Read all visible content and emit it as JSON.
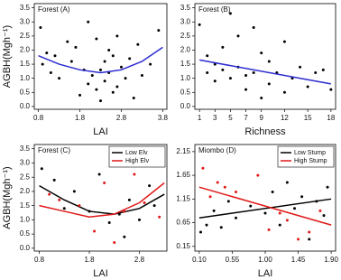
{
  "chart_data": [
    {
      "type": "scatter",
      "title": "Forest (A)",
      "xlabel": "LAI",
      "ylabel": "AGBH(Mgh⁻¹)",
      "xlim": [
        0.7,
        3.9
      ],
      "ylim": [
        -0.1,
        3.65
      ],
      "xticks": [
        0.8,
        1.8,
        2.8,
        3.8
      ],
      "yticks": [
        {
          "value": 0,
          "label": "0.0"
        },
        0.5,
        {
          "value": 1,
          "label": "1.0"
        },
        1.5,
        {
          "value": 2,
          "label": "2.0"
        },
        2.5,
        {
          "value": 3,
          "label": "3.0"
        },
        3.5
      ],
      "series": [
        {
          "color": "#000000",
          "fit_color": "#2b2bd0",
          "x": [
            0.85,
            0.9,
            1.0,
            1.1,
            1.2,
            1.3,
            1.5,
            1.6,
            1.7,
            1.8,
            1.9,
            2.0,
            2.0,
            2.1,
            2.2,
            2.2,
            2.3,
            2.3,
            2.4,
            2.4,
            2.5,
            2.5,
            2.6,
            2.6,
            2.7,
            2.7,
            2.8,
            2.9,
            3.0,
            3.1,
            3.2,
            3.3,
            3.5,
            3.7
          ],
          "values": [
            2.8,
            1.5,
            1.9,
            1.2,
            1.8,
            1.0,
            2.3,
            1.6,
            2.1,
            0.4,
            1.3,
            3.0,
            0.8,
            1.1,
            2.4,
            0.6,
            1.3,
            0.2,
            1.6,
            0.9,
            2.0,
            1.2,
            0.5,
            1.8,
            2.5,
            0.7,
            1.4,
            1.0,
            1.7,
            0.3,
            2.2,
            1.1,
            1.5,
            2.7
          ],
          "fit_x": [
            0.8,
            1.3,
            1.8,
            2.3,
            2.8,
            3.3,
            3.8
          ],
          "fit_values": [
            1.8,
            1.5,
            1.3,
            1.2,
            1.3,
            1.6,
            2.1
          ]
        }
      ]
    },
    {
      "type": "scatter",
      "title": "Forest (B)",
      "xlabel": "Richness",
      "xlim": [
        0.4,
        18.6
      ],
      "ylim": [
        -0.1,
        3.65
      ],
      "xticks": [
        1,
        3,
        5,
        7,
        9,
        12,
        15,
        18
      ],
      "yticks": [
        {
          "value": 0,
          "label": "0.0"
        },
        0.5,
        {
          "value": 1,
          "label": "1.0"
        },
        1.5,
        {
          "value": 2,
          "label": "2.0"
        },
        2.5,
        {
          "value": 3,
          "label": "3.0"
        },
        3.5
      ],
      "series": [
        {
          "color": "#000000",
          "fit_color": "#2b2bd0",
          "x": [
            1,
            2,
            2,
            3,
            3,
            4,
            4,
            5,
            5,
            6,
            6,
            7,
            7,
            8,
            8,
            9,
            9,
            10,
            10,
            11,
            12,
            12,
            13,
            14,
            15,
            16,
            17,
            18
          ],
          "values": [
            2.9,
            1.2,
            1.8,
            1.5,
            0.9,
            2.1,
            1.3,
            3.3,
            1.0,
            2.5,
            1.4,
            1.1,
            0.6,
            2.8,
            1.2,
            1.9,
            0.3,
            1.6,
            0.8,
            1.2,
            2.3,
            0.5,
            1.0,
            1.4,
            0.7,
            1.2,
            1.3,
            0.6
          ],
          "fit_x": [
            1,
            18
          ],
          "fit_values": [
            1.65,
            0.8
          ]
        }
      ]
    },
    {
      "type": "scatter",
      "title": "Forest (C)",
      "xlabel": "LAI",
      "ylabel": "AGBH(Mgh⁻¹)",
      "legend": "top-right",
      "xlim": [
        0.7,
        3.35
      ],
      "ylim": [
        -0.1,
        3.65
      ],
      "xticks": [
        0.8,
        1.8,
        2.8
      ],
      "yticks": [
        {
          "value": 0,
          "label": "0.0"
        },
        0.5,
        {
          "value": 1,
          "label": "1.0"
        },
        1.5,
        {
          "value": 2,
          "label": "2.0"
        },
        2.5,
        {
          "value": 3,
          "label": "3.0"
        },
        3.5
      ],
      "series": [
        {
          "name": "Low Elv",
          "color": "#000000",
          "fit_color": "#000000",
          "x": [
            0.85,
            1.1,
            1.3,
            1.5,
            1.8,
            2.0,
            2.2,
            2.4,
            2.5,
            2.6,
            2.8,
            3.0,
            3.1
          ],
          "values": [
            2.8,
            2.4,
            1.4,
            2.0,
            1.3,
            2.6,
            0.9,
            1.2,
            0.4,
            1.7,
            1.0,
            2.2,
            1.5
          ],
          "fit_x": [
            0.8,
            1.3,
            1.8,
            2.3,
            2.8,
            3.3
          ],
          "fit_values": [
            2.2,
            1.7,
            1.3,
            1.2,
            1.4,
            1.9
          ]
        },
        {
          "name": "High Elv",
          "color": "#e01818",
          "fit_color": "#e01818",
          "x": [
            1.0,
            1.2,
            1.6,
            1.9,
            2.1,
            2.3,
            2.5,
            2.7,
            2.9,
            3.2
          ],
          "values": [
            1.9,
            1.7,
            1.5,
            0.6,
            2.3,
            0.2,
            1.3,
            2.6,
            1.6,
            1.1
          ],
          "fit_x": [
            0.8,
            1.3,
            1.8,
            2.3,
            2.8,
            3.3
          ],
          "fit_values": [
            1.5,
            1.3,
            1.1,
            1.2,
            1.6,
            2.3
          ]
        }
      ]
    },
    {
      "type": "scatter",
      "title": "Miombo (D)",
      "xlabel": "LAI",
      "legend": "top-right",
      "xlim": [
        0.04,
        1.96
      ],
      "ylim": [
        0.05,
        2.3
      ],
      "xticks": [
        {
          "value": 0.1,
          "label": "0.10"
        },
        0.55,
        {
          "value": 1,
          "label": "1.00"
        },
        1.45,
        {
          "value": 1.9,
          "label": "1.90"
        }
      ],
      "yticks": [
        0.15,
        0.65,
        1.15,
        1.65,
        2.15
      ],
      "series": [
        {
          "name": "Low Stump",
          "color": "#000000",
          "fit_color": "#000000",
          "x": [
            0.12,
            0.2,
            0.3,
            0.4,
            0.5,
            0.6,
            0.8,
            1.0,
            1.1,
            1.2,
            1.3,
            1.4,
            1.5,
            1.6,
            1.7,
            1.8,
            1.85
          ],
          "values": [
            0.45,
            0.6,
            0.9,
            0.55,
            1.1,
            0.75,
            1.0,
            0.85,
            1.3,
            0.6,
            1.5,
            0.95,
            1.2,
            0.3,
            1.1,
            0.8,
            1.4
          ],
          "fit_x": [
            0.1,
            1.9
          ],
          "fit_values": [
            0.75,
            1.15
          ]
        },
        {
          "name": "High Stump",
          "color": "#e01818",
          "fit_color": "#e01818",
          "x": [
            0.15,
            0.25,
            0.35,
            0.45,
            0.6,
            0.9,
            1.05,
            1.2,
            1.3,
            1.45,
            1.6,
            1.75
          ],
          "values": [
            1.8,
            1.2,
            1.5,
            1.4,
            1.3,
            1.65,
            0.5,
            0.85,
            0.7,
            0.3,
            0.45,
            0.9
          ],
          "fit_x": [
            0.1,
            1.9
          ],
          "fit_values": [
            1.4,
            0.6
          ]
        }
      ]
    }
  ]
}
